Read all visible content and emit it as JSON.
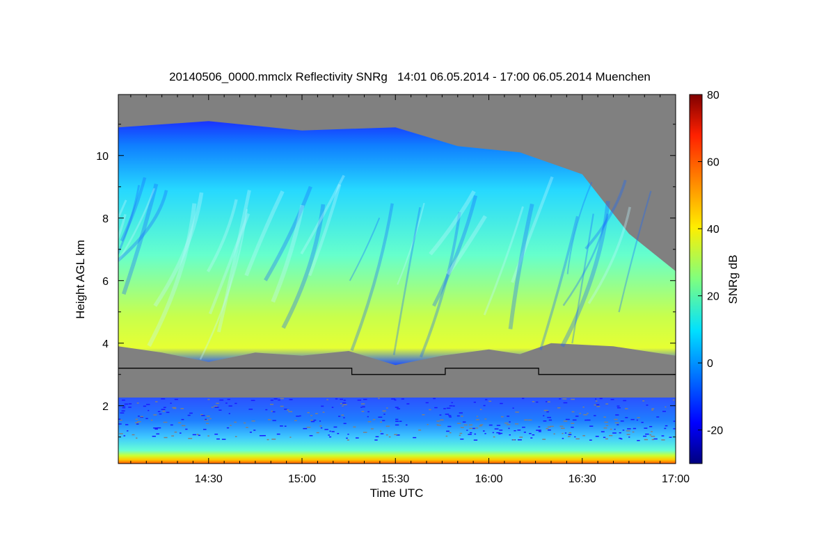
{
  "chart_data": {
    "type": "heatmap",
    "title": "20140506_0000.mmclx Reflectivity SNRg   14:01 06.05.2014 - 17:00 06.05.2014 Muenchen",
    "xlabel": "Time UTC",
    "ylabel": "Height AGL km",
    "colorbar_label": "SNRg dB",
    "x_range": [
      "14:01",
      "17:00"
    ],
    "x_ticks": [
      "14:30",
      "15:00",
      "15:30",
      "16:00",
      "16:30",
      "17:00"
    ],
    "ylim": [
      0.15,
      11.95
    ],
    "y_ticks": [
      2,
      4,
      6,
      8,
      10
    ],
    "colorbar_range": [
      -30,
      80
    ],
    "colorbar_ticks": [
      -20,
      0,
      20,
      40,
      60,
      80
    ],
    "colormap": "jet",
    "no_data_color": "#808080",
    "cloud_base_km": [
      {
        "t": "14:01",
        "h": 3.9
      },
      {
        "t": "14:15",
        "h": 3.7
      },
      {
        "t": "14:30",
        "h": 3.4
      },
      {
        "t": "14:45",
        "h": 3.7
      },
      {
        "t": "15:00",
        "h": 3.6
      },
      {
        "t": "15:15",
        "h": 3.75
      },
      {
        "t": "15:30",
        "h": 3.3
      },
      {
        "t": "15:45",
        "h": 3.6
      },
      {
        "t": "16:00",
        "h": 3.8
      },
      {
        "t": "16:10",
        "h": 3.65
      },
      {
        "t": "16:20",
        "h": 4.0
      },
      {
        "t": "16:40",
        "h": 3.9
      },
      {
        "t": "17:00",
        "h": 3.6
      }
    ],
    "echo_top_km": [
      {
        "t": "14:01",
        "h": 10.9
      },
      {
        "t": "14:30",
        "h": 11.1
      },
      {
        "t": "15:00",
        "h": 10.8
      },
      {
        "t": "15:30",
        "h": 10.9
      },
      {
        "t": "15:50",
        "h": 10.3
      },
      {
        "t": "16:10",
        "h": 10.1
      },
      {
        "t": "16:30",
        "h": 9.4
      },
      {
        "t": "16:45",
        "h": 7.5
      },
      {
        "t": "17:00",
        "h": 6.3
      }
    ],
    "reference_line_km": [
      {
        "t": "14:01",
        "h": 3.2
      },
      {
        "t": "15:16",
        "h": 3.2
      },
      {
        "t": "15:16",
        "h": 3.0
      },
      {
        "t": "15:46",
        "h": 3.0
      },
      {
        "t": "15:46",
        "h": 3.2
      },
      {
        "t": "16:16",
        "h": 3.2
      },
      {
        "t": "16:16",
        "h": 3.0
      },
      {
        "t": "17:00",
        "h": 3.0
      }
    ]
  }
}
